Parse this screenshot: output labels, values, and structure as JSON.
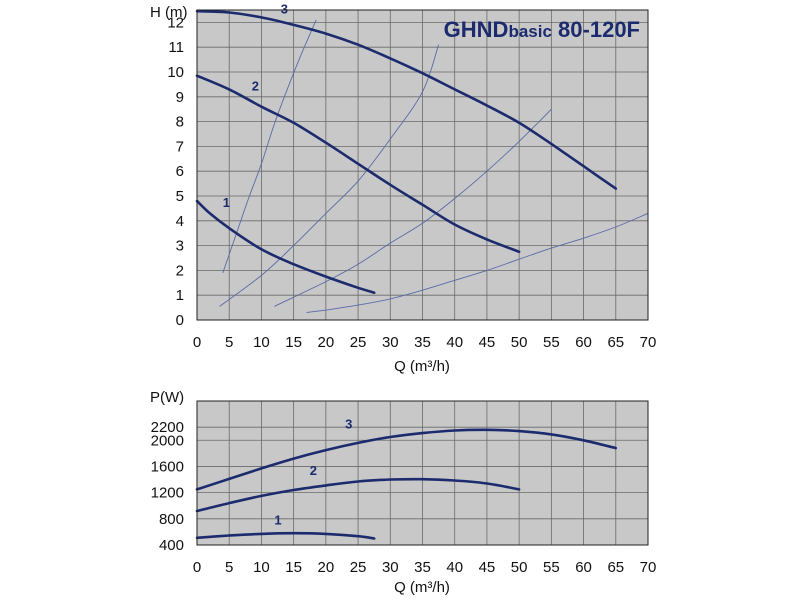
{
  "chart_data": [
    {
      "type": "line",
      "title_main": "GHND",
      "title_sub": "basic",
      "title_model": " 80-120F",
      "xlabel": "Q (m³/h)",
      "ylabel": "H (m)",
      "xlim": [
        0,
        70
      ],
      "ylim": [
        0,
        12.5
      ],
      "x_ticks": [
        0,
        5,
        10,
        15,
        20,
        25,
        30,
        35,
        40,
        45,
        50,
        55,
        60,
        65,
        70
      ],
      "y_ticks": [
        0,
        1,
        2,
        3,
        4,
        5,
        6,
        7,
        8,
        9,
        10,
        11,
        12
      ],
      "grid": true,
      "series": [
        {
          "name": "1",
          "x": [
            0,
            2,
            5,
            10,
            15,
            20,
            25,
            27.5
          ],
          "y": [
            4.8,
            4.3,
            3.7,
            2.85,
            2.25,
            1.75,
            1.3,
            1.1
          ]
        },
        {
          "name": "2",
          "x": [
            0,
            5,
            10,
            15,
            20,
            25,
            30,
            35,
            40,
            45,
            50
          ],
          "y": [
            9.85,
            9.3,
            8.6,
            7.95,
            7.15,
            6.3,
            5.45,
            4.65,
            3.85,
            3.25,
            2.75
          ]
        },
        {
          "name": "3",
          "x": [
            0,
            5,
            10,
            15,
            20,
            25,
            30,
            35,
            40,
            45,
            50,
            55,
            60,
            65
          ],
          "y": [
            12.45,
            12.4,
            12.2,
            11.9,
            11.55,
            11.1,
            10.55,
            9.95,
            9.3,
            8.65,
            7.95,
            7.1,
            6.2,
            5.3
          ]
        }
      ],
      "system_curves": [
        {
          "x": [
            4,
            6,
            8,
            10,
            12,
            14,
            16,
            18.5
          ],
          "y": [
            1.9,
            3.4,
            4.9,
            6.3,
            7.9,
            9.3,
            10.6,
            12.1
          ]
        },
        {
          "x": [
            3.5,
            10,
            15,
            20,
            25,
            30,
            35,
            37.5
          ],
          "y": [
            0.55,
            1.8,
            3.0,
            4.3,
            5.6,
            7.3,
            9.2,
            11.1
          ]
        },
        {
          "x": [
            12,
            20,
            25,
            30,
            35,
            40,
            45,
            50,
            55
          ],
          "y": [
            0.55,
            1.55,
            2.25,
            3.1,
            3.9,
            4.9,
            6.0,
            7.2,
            8.5
          ]
        },
        {
          "x": [
            17,
            20,
            25,
            30,
            35,
            40,
            45,
            50,
            55,
            60,
            65,
            70
          ],
          "y": [
            0.3,
            0.4,
            0.6,
            0.85,
            1.2,
            1.6,
            2.0,
            2.45,
            2.9,
            3.3,
            3.75,
            4.3
          ]
        }
      ],
      "label_positions": [
        {
          "name": "1",
          "x": 4,
          "y": 4.55
        },
        {
          "name": "2",
          "x": 8.5,
          "y": 9.25
        },
        {
          "name": "3",
          "x": 13,
          "y": 12.35
        }
      ]
    },
    {
      "type": "line",
      "xlabel": "Q (m³/h)",
      "ylabel": "P(W)",
      "xlim": [
        0,
        70
      ],
      "ylim": [
        400,
        2600
      ],
      "x_ticks": [
        0,
        5,
        10,
        15,
        20,
        25,
        30,
        35,
        40,
        45,
        50,
        55,
        60,
        65,
        70
      ],
      "y_ticks": [
        400,
        800,
        1200,
        1600,
        2000,
        2200
      ],
      "grid": true,
      "series": [
        {
          "name": "1",
          "x": [
            0,
            5,
            10,
            15,
            20,
            25,
            27.5
          ],
          "y": [
            510,
            545,
            570,
            580,
            570,
            535,
            500
          ]
        },
        {
          "name": "2",
          "x": [
            0,
            5,
            10,
            15,
            20,
            25,
            30,
            35,
            40,
            45,
            50
          ],
          "y": [
            920,
            1040,
            1150,
            1240,
            1310,
            1370,
            1400,
            1405,
            1385,
            1340,
            1250
          ]
        },
        {
          "name": "3",
          "x": [
            0,
            5,
            10,
            15,
            20,
            25,
            30,
            35,
            40,
            45,
            50,
            55,
            60,
            65
          ],
          "y": [
            1250,
            1410,
            1570,
            1720,
            1850,
            1960,
            2050,
            2110,
            2150,
            2160,
            2140,
            2090,
            2000,
            1880
          ]
        }
      ],
      "label_positions": [
        {
          "name": "1",
          "x": 12,
          "y": 710
        },
        {
          "name": "2",
          "x": 17.5,
          "y": 1470
        },
        {
          "name": "3",
          "x": 23,
          "y": 2180
        }
      ]
    }
  ]
}
